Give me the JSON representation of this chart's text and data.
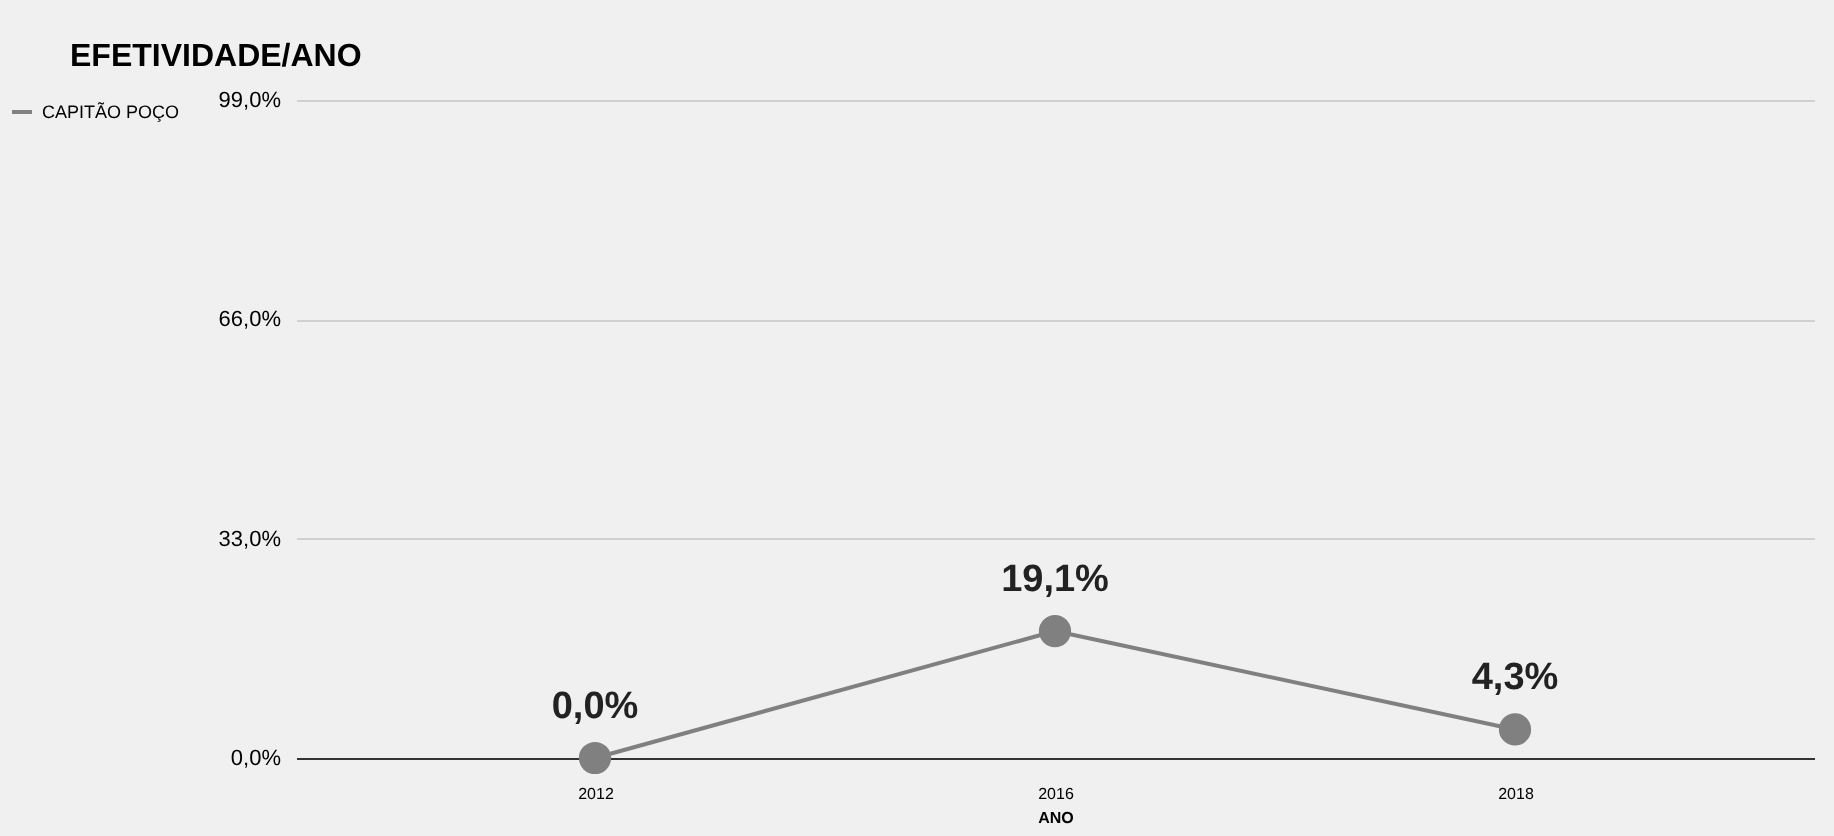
{
  "chart_data": {
    "type": "line",
    "title": "EFETIVIDADE/ANO",
    "xlabel": "ANO",
    "categories": [
      "2012",
      "2016",
      "2018"
    ],
    "series": [
      {
        "name": "CAPITÃO POÇO",
        "color": "#808080",
        "values": [
          0.0,
          19.1,
          4.3
        ],
        "value_labels": [
          "0,0%",
          "19,1%",
          "4,3%"
        ]
      }
    ],
    "ylim": [
      0,
      99
    ],
    "yticks": [
      {
        "value": 0,
        "label": "0,0%"
      },
      {
        "value": 33,
        "label": "33,0%"
      },
      {
        "value": 66,
        "label": "66,0%"
      },
      {
        "value": 99,
        "label": "99,0%"
      }
    ],
    "grid": "y",
    "legend": "left",
    "marker": "circle",
    "line_style": "solid"
  }
}
